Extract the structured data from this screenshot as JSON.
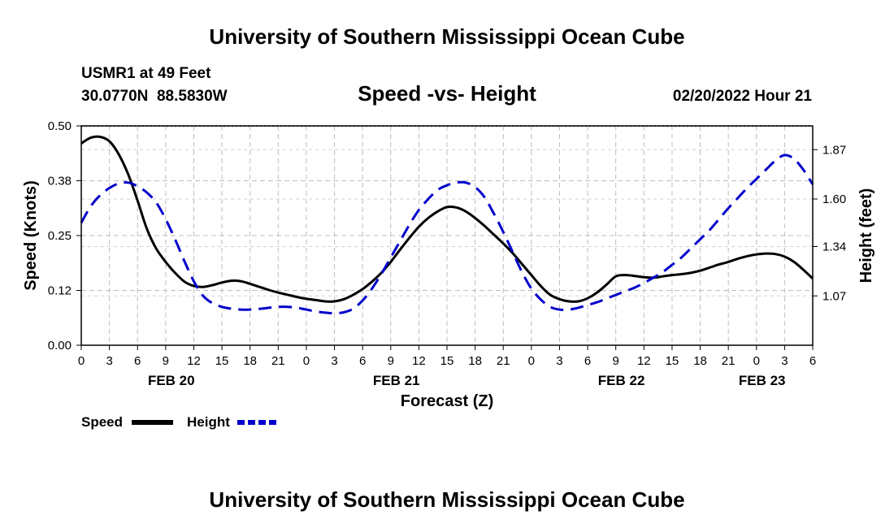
{
  "chart_data": {
    "type": "line",
    "title": "University of Southern Mississippi Ocean Cube",
    "footer_title": "University of Southern Mississippi Ocean Cube",
    "station": "USMR1 at 49 Feet",
    "coords": "30.0770N  88.5830W",
    "subtitle": "Speed -vs- Height",
    "timestamp": "02/20/2022 Hour 21",
    "xlabel": "Forecast (Z)",
    "ylabel_left": "Speed (Knots)",
    "ylabel_right": "Height (feet)",
    "x_range": [
      0,
      78
    ],
    "x_ticks": [
      {
        "x": 0,
        "label": "0"
      },
      {
        "x": 3,
        "label": "3"
      },
      {
        "x": 6,
        "label": "6"
      },
      {
        "x": 9,
        "label": "9"
      },
      {
        "x": 12,
        "label": "12"
      },
      {
        "x": 15,
        "label": "15"
      },
      {
        "x": 18,
        "label": "18"
      },
      {
        "x": 21,
        "label": "21"
      },
      {
        "x": 24,
        "label": "0"
      },
      {
        "x": 27,
        "label": "3"
      },
      {
        "x": 30,
        "label": "6"
      },
      {
        "x": 33,
        "label": "9"
      },
      {
        "x": 36,
        "label": "12"
      },
      {
        "x": 39,
        "label": "15"
      },
      {
        "x": 42,
        "label": "18"
      },
      {
        "x": 45,
        "label": "21"
      },
      {
        "x": 48,
        "label": "0"
      },
      {
        "x": 51,
        "label": "3"
      },
      {
        "x": 54,
        "label": "6"
      },
      {
        "x": 57,
        "label": "9"
      },
      {
        "x": 60,
        "label": "12"
      },
      {
        "x": 63,
        "label": "15"
      },
      {
        "x": 66,
        "label": "18"
      },
      {
        "x": 69,
        "label": "21"
      },
      {
        "x": 72,
        "label": "0"
      },
      {
        "x": 75,
        "label": "3"
      },
      {
        "x": 78,
        "label": "6"
      }
    ],
    "date_labels": [
      {
        "x": 9.6,
        "label": "FEB 20"
      },
      {
        "x": 33.6,
        "label": "FEB 21"
      },
      {
        "x": 57.6,
        "label": "FEB 22"
      },
      {
        "x": 72.6,
        "label": "FEB 23"
      }
    ],
    "y_left": {
      "range": [
        0,
        0.5
      ],
      "ticks": [
        0,
        0.125,
        0.25,
        0.375,
        0.5
      ],
      "tick_labels": [
        "0.00",
        "0.12",
        "0.25",
        "0.38",
        "0.50"
      ]
    },
    "y_right": {
      "range": [
        0.8,
        2.0
      ],
      "ticks": [
        1.07,
        1.34,
        1.6,
        1.87
      ],
      "tick_labels": [
        "1.07",
        "1.34",
        "1.60",
        "1.87"
      ]
    },
    "grid": true,
    "legend_position": "bottom-left",
    "series": [
      {
        "name": "Speed",
        "axis": "left",
        "color": "#000000",
        "dash": "solid",
        "points": [
          [
            0,
            0.46
          ],
          [
            1,
            0.473
          ],
          [
            2,
            0.475
          ],
          [
            3,
            0.465
          ],
          [
            4,
            0.435
          ],
          [
            5,
            0.39
          ],
          [
            6,
            0.33
          ],
          [
            7,
            0.265
          ],
          [
            8,
            0.22
          ],
          [
            9,
            0.19
          ],
          [
            10,
            0.165
          ],
          [
            11,
            0.145
          ],
          [
            12,
            0.135
          ],
          [
            13,
            0.133
          ],
          [
            14,
            0.137
          ],
          [
            15,
            0.143
          ],
          [
            16,
            0.147
          ],
          [
            17,
            0.146
          ],
          [
            18,
            0.14
          ],
          [
            19,
            0.133
          ],
          [
            20,
            0.126
          ],
          [
            21,
            0.12
          ],
          [
            22,
            0.115
          ],
          [
            23,
            0.11
          ],
          [
            24,
            0.106
          ],
          [
            25,
            0.103
          ],
          [
            26,
            0.1
          ],
          [
            27,
            0.1
          ],
          [
            28,
            0.105
          ],
          [
            29,
            0.115
          ],
          [
            30,
            0.128
          ],
          [
            31,
            0.145
          ],
          [
            32,
            0.165
          ],
          [
            33,
            0.19
          ],
          [
            34,
            0.218
          ],
          [
            35,
            0.245
          ],
          [
            36,
            0.27
          ],
          [
            37,
            0.29
          ],
          [
            38,
            0.305
          ],
          [
            39,
            0.315
          ],
          [
            40,
            0.314
          ],
          [
            41,
            0.305
          ],
          [
            42,
            0.29
          ],
          [
            43,
            0.272
          ],
          [
            44,
            0.252
          ],
          [
            45,
            0.232
          ],
          [
            46,
            0.21
          ],
          [
            47,
            0.185
          ],
          [
            48,
            0.16
          ],
          [
            49,
            0.135
          ],
          [
            50,
            0.115
          ],
          [
            51,
            0.105
          ],
          [
            52,
            0.1
          ],
          [
            53,
            0.1
          ],
          [
            54,
            0.107
          ],
          [
            55,
            0.12
          ],
          [
            56,
            0.138
          ],
          [
            57,
            0.157
          ],
          [
            58,
            0.16
          ],
          [
            59,
            0.158
          ],
          [
            60,
            0.155
          ],
          [
            61,
            0.154
          ],
          [
            62,
            0.157
          ],
          [
            63,
            0.16
          ],
          [
            64,
            0.162
          ],
          [
            65,
            0.165
          ],
          [
            66,
            0.17
          ],
          [
            67,
            0.177
          ],
          [
            68,
            0.184
          ],
          [
            69,
            0.19
          ],
          [
            70,
            0.197
          ],
          [
            71,
            0.203
          ],
          [
            72,
            0.207
          ],
          [
            73,
            0.209
          ],
          [
            74,
            0.208
          ],
          [
            75,
            0.202
          ],
          [
            76,
            0.19
          ],
          [
            77,
            0.172
          ],
          [
            78,
            0.152
          ]
        ]
      },
      {
        "name": "Height",
        "axis": "right",
        "color": "#0000cc",
        "dash": "dashed",
        "points": [
          [
            0,
            1.47
          ],
          [
            1,
            1.56
          ],
          [
            2,
            1.62
          ],
          [
            3,
            1.66
          ],
          [
            4,
            1.685
          ],
          [
            5,
            1.69
          ],
          [
            6,
            1.67
          ],
          [
            7,
            1.635
          ],
          [
            8,
            1.58
          ],
          [
            9,
            1.49
          ],
          [
            10,
            1.38
          ],
          [
            11,
            1.26
          ],
          [
            12,
            1.15
          ],
          [
            13,
            1.07
          ],
          [
            14,
            1.03
          ],
          [
            15,
            1.01
          ],
          [
            16,
            1.0
          ],
          [
            17,
            0.995
          ],
          [
            18,
            0.995
          ],
          [
            19,
            0.999
          ],
          [
            20,
            1.005
          ],
          [
            21,
            1.01
          ],
          [
            22,
            1.01
          ],
          [
            23,
            1.005
          ],
          [
            24,
            0.995
          ],
          [
            25,
            0.985
          ],
          [
            26,
            0.978
          ],
          [
            27,
            0.975
          ],
          [
            28,
            0.98
          ],
          [
            29,
            1.0
          ],
          [
            30,
            1.045
          ],
          [
            31,
            1.11
          ],
          [
            32,
            1.19
          ],
          [
            33,
            1.28
          ],
          [
            34,
            1.37
          ],
          [
            35,
            1.46
          ],
          [
            36,
            1.54
          ],
          [
            37,
            1.6
          ],
          [
            38,
            1.65
          ],
          [
            39,
            1.675
          ],
          [
            40,
            1.69
          ],
          [
            41,
            1.69
          ],
          [
            42,
            1.665
          ],
          [
            43,
            1.61
          ],
          [
            44,
            1.52
          ],
          [
            45,
            1.42
          ],
          [
            46,
            1.31
          ],
          [
            47,
            1.2
          ],
          [
            48,
            1.11
          ],
          [
            49,
            1.05
          ],
          [
            50,
            1.01
          ],
          [
            51,
            0.995
          ],
          [
            52,
            0.995
          ],
          [
            53,
            1.005
          ],
          [
            54,
            1.02
          ],
          [
            55,
            1.035
          ],
          [
            56,
            1.055
          ],
          [
            57,
            1.075
          ],
          [
            58,
            1.095
          ],
          [
            59,
            1.115
          ],
          [
            60,
            1.14
          ],
          [
            61,
            1.17
          ],
          [
            62,
            1.2
          ],
          [
            63,
            1.24
          ],
          [
            64,
            1.28
          ],
          [
            65,
            1.33
          ],
          [
            66,
            1.38
          ],
          [
            67,
            1.43
          ],
          [
            68,
            1.49
          ],
          [
            69,
            1.55
          ],
          [
            70,
            1.605
          ],
          [
            71,
            1.66
          ],
          [
            72,
            1.71
          ],
          [
            73,
            1.76
          ],
          [
            74,
            1.81
          ],
          [
            75,
            1.84
          ],
          [
            76,
            1.82
          ],
          [
            77,
            1.76
          ],
          [
            78,
            1.68
          ]
        ]
      }
    ]
  }
}
